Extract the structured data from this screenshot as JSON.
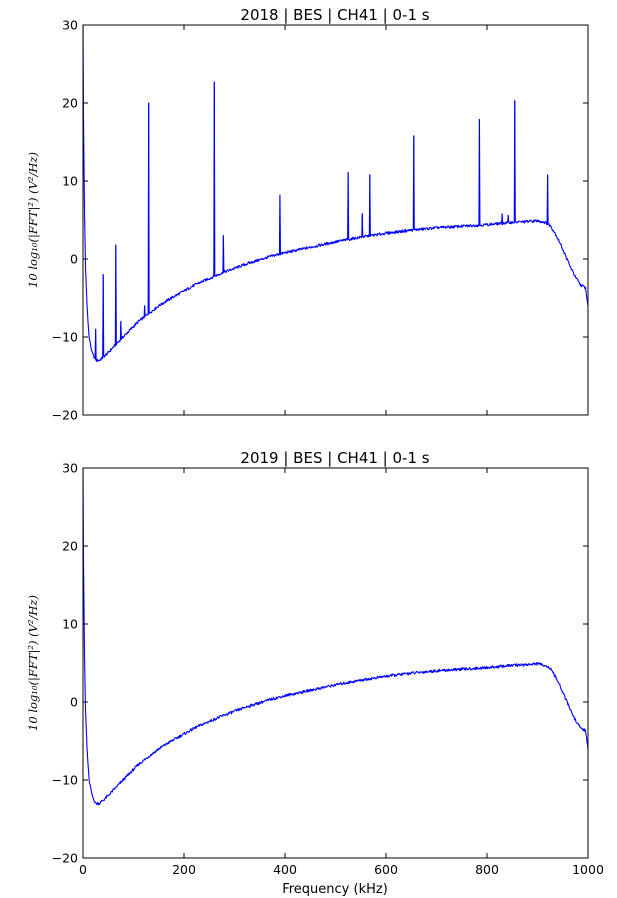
{
  "chart_data": [
    {
      "type": "line",
      "title": "2018 | BES | CH41 | 0-1 s",
      "xlabel": "",
      "ylabel": "10 log₁₀(|FFT|²) (V²/Hz)",
      "xlim": [
        0,
        1000
      ],
      "ylim": [
        -20,
        30
      ],
      "xticks": [
        0,
        200,
        400,
        600,
        800,
        1000
      ],
      "xtick_labels": [],
      "yticks": [
        -20,
        -10,
        0,
        10,
        20,
        30
      ],
      "ytick_labels": [
        "−20",
        "−10",
        "0",
        "10",
        "20",
        "30"
      ],
      "grid": false,
      "color": "#0000ff",
      "baseline": {
        "x": [
          0,
          1,
          3,
          5,
          8,
          12,
          18,
          25,
          32,
          40,
          50,
          60,
          75,
          90,
          110,
          130,
          150,
          175,
          200,
          225,
          250,
          275,
          300,
          325,
          350,
          375,
          400,
          450,
          500,
          550,
          600,
          650,
          700,
          750,
          800,
          850,
          880,
          900,
          915,
          925,
          935,
          945,
          955,
          965,
          975,
          985,
          995,
          1000
        ],
        "y": [
          30,
          18,
          6,
          -1,
          -6,
          -10,
          -12,
          -13,
          -13,
          -12.6,
          -12,
          -11.3,
          -10.3,
          -9.3,
          -8,
          -7,
          -6,
          -5,
          -4.1,
          -3.2,
          -2.5,
          -1.8,
          -1.2,
          -0.6,
          -0.1,
          0.4,
          0.8,
          1.5,
          2.2,
          2.8,
          3.3,
          3.7,
          4.0,
          4.2,
          4.4,
          4.7,
          4.8,
          4.9,
          4.7,
          4.3,
          3.3,
          2.0,
          0.5,
          -1.0,
          -2.3,
          -3.3,
          -3.7,
          -6
        ]
      },
      "spikes": [
        {
          "x": 25,
          "y": -9
        },
        {
          "x": 40,
          "y": -2
        },
        {
          "x": 65,
          "y": 1.8
        },
        {
          "x": 75,
          "y": -8
        },
        {
          "x": 122,
          "y": -6
        },
        {
          "x": 130,
          "y": 20
        },
        {
          "x": 260,
          "y": 22.7
        },
        {
          "x": 278,
          "y": 3
        },
        {
          "x": 390,
          "y": 8.2
        },
        {
          "x": 525,
          "y": 11.1
        },
        {
          "x": 553,
          "y": 5.8
        },
        {
          "x": 568,
          "y": 10.8
        },
        {
          "x": 655,
          "y": 15.8
        },
        {
          "x": 785,
          "y": 17.9
        },
        {
          "x": 830,
          "y": 5.8
        },
        {
          "x": 842,
          "y": 5.6
        },
        {
          "x": 855,
          "y": 20.3
        },
        {
          "x": 920,
          "y": 10.8
        }
      ]
    },
    {
      "type": "line",
      "title": "2019 | BES | CH41 | 0-1 s",
      "xlabel": "Frequency (kHz)",
      "ylabel": "10 log₁₀(|FFT|²) (V²/Hz)",
      "xlim": [
        0,
        1000
      ],
      "ylim": [
        -20,
        30
      ],
      "xticks": [
        0,
        200,
        400,
        600,
        800,
        1000
      ],
      "xtick_labels": [
        "0",
        "200",
        "400",
        "600",
        "800",
        "1000"
      ],
      "yticks": [
        -20,
        -10,
        0,
        10,
        20,
        30
      ],
      "ytick_labels": [
        "−20",
        "−10",
        "0",
        "10",
        "20",
        "30"
      ],
      "grid": false,
      "color": "#0000ff",
      "baseline": {
        "x": [
          0,
          1,
          3,
          5,
          8,
          12,
          18,
          25,
          32,
          40,
          50,
          60,
          75,
          90,
          110,
          130,
          150,
          175,
          200,
          225,
          250,
          275,
          300,
          325,
          350,
          375,
          400,
          450,
          500,
          550,
          600,
          650,
          700,
          750,
          800,
          850,
          880,
          900,
          915,
          925,
          935,
          945,
          955,
          965,
          975,
          985,
          995,
          1000
        ],
        "y": [
          30,
          18,
          6,
          -1,
          -6,
          -10,
          -12,
          -13,
          -13,
          -12.6,
          -12,
          -11.3,
          -10.3,
          -9.3,
          -8,
          -7,
          -6,
          -5,
          -4.1,
          -3.2,
          -2.5,
          -1.8,
          -1.2,
          -0.6,
          -0.1,
          0.4,
          0.8,
          1.5,
          2.2,
          2.8,
          3.3,
          3.7,
          4.0,
          4.2,
          4.4,
          4.7,
          4.8,
          4.9,
          4.7,
          4.3,
          3.3,
          2.0,
          0.5,
          -1.0,
          -2.3,
          -3.3,
          -3.7,
          -6
        ]
      },
      "spikes": []
    }
  ]
}
